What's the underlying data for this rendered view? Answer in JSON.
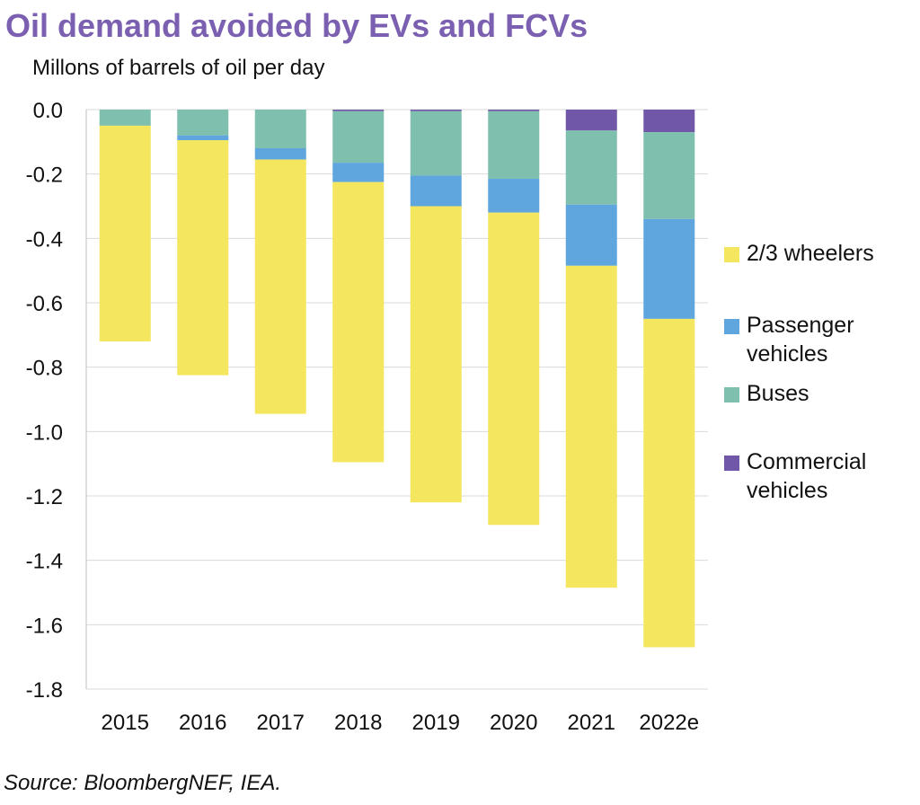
{
  "title": "Oil demand avoided by EVs and FCVs",
  "subtitle": "Millons of barrels of oil per day",
  "source": "Source: BloombergNEF, IEA.",
  "chart_data": {
    "type": "bar",
    "stacked": true,
    "categories": [
      "2015",
      "2016",
      "2017",
      "2018",
      "2019",
      "2020",
      "2021",
      "2022e"
    ],
    "ylim": [
      -1.8,
      0.0
    ],
    "yticks": [
      0.0,
      -0.2,
      -0.4,
      -0.6,
      -0.8,
      -1.0,
      -1.2,
      -1.4,
      -1.6,
      -1.8
    ],
    "ytick_labels": [
      "0.0",
      "-0.2",
      "-0.4",
      "-0.6",
      "-0.8",
      "-1.0",
      "-1.2",
      "-1.4",
      "-1.6",
      "-1.8"
    ],
    "grid": true,
    "legend_position": "right",
    "series": [
      {
        "name": "Commercial vehicles",
        "color": "#7157a8",
        "values": [
          0.0,
          0.0,
          0.0,
          -0.005,
          -0.005,
          -0.005,
          -0.065,
          -0.07
        ]
      },
      {
        "name": "Buses",
        "color": "#7fbfad",
        "values": [
          -0.05,
          -0.08,
          -0.12,
          -0.16,
          -0.2,
          -0.21,
          -0.23,
          -0.27
        ]
      },
      {
        "name": "Passenger vehicles",
        "color": "#5ea6dd",
        "values": [
          0.0,
          -0.015,
          -0.035,
          -0.06,
          -0.095,
          -0.105,
          -0.19,
          -0.31
        ]
      },
      {
        "name": "2/3 wheelers",
        "color": "#f4e65f",
        "values": [
          -0.67,
          -0.73,
          -0.79,
          -0.87,
          -0.92,
          -0.97,
          -1.0,
          -1.02
        ]
      }
    ],
    "legend": [
      {
        "label": "2/3 wheelers",
        "color": "#f4e65f"
      },
      {
        "label": "Passenger vehicles",
        "color": "#5ea6dd"
      },
      {
        "label": "Buses",
        "color": "#7fbfad"
      },
      {
        "label": "Commercial vehicles",
        "color": "#7157a8"
      }
    ]
  }
}
